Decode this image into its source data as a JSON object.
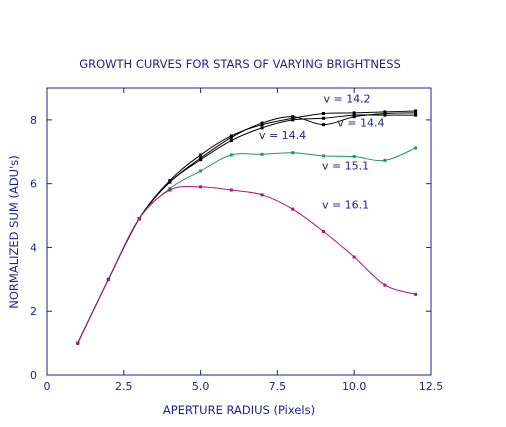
{
  "chart_data": {
    "type": "line",
    "title": "GROWTH CURVES FOR STARS OF VARYING BRIGHTNESS",
    "xlabel": "APERTURE RADIUS (Pixels)",
    "ylabel": "NORMALIZED SUM (ADU's)",
    "xlim": [
      0,
      12.5
    ],
    "ylim": [
      0,
      9
    ],
    "xticks": [
      0,
      2.5,
      5,
      7.5,
      10,
      12.5
    ],
    "xtick_labels": [
      "0",
      "2.5",
      "5.0",
      "7.5",
      "10.0",
      "12.5"
    ],
    "yticks": [
      0,
      2,
      4,
      6,
      8
    ],
    "ytick_labels": [
      "0",
      "2",
      "4",
      "6",
      "8"
    ],
    "grid": false,
    "series": [
      {
        "name": "v = 14.2",
        "color": "#000000",
        "x": [
          1,
          2,
          3,
          4,
          5,
          6,
          7,
          8,
          9,
          10,
          11,
          12
        ],
        "y": [
          1.0,
          3.0,
          4.9,
          6.1,
          6.9,
          7.5,
          7.85,
          8.05,
          8.2,
          8.22,
          8.25,
          8.28
        ]
      },
      {
        "name": "v = 14.4",
        "color": "#000000",
        "x": [
          1,
          2,
          3,
          4,
          5,
          6,
          7,
          8,
          9,
          10,
          11,
          12
        ],
        "y": [
          1.0,
          3.0,
          4.9,
          6.05,
          6.8,
          7.45,
          7.9,
          8.1,
          7.85,
          8.1,
          8.2,
          8.22
        ]
      },
      {
        "name": "v = 14.4",
        "color": "#000000",
        "x": [
          1,
          2,
          3,
          4,
          5,
          6,
          7,
          8,
          9,
          10,
          11,
          12
        ],
        "y": [
          1.0,
          3.0,
          4.9,
          6.05,
          6.75,
          7.35,
          7.75,
          8.0,
          8.05,
          8.15,
          8.15,
          8.15
        ]
      },
      {
        "name": "v = 15.1",
        "color": "#1a9a5a",
        "x": [
          1,
          2,
          3,
          4,
          5,
          6,
          7,
          8,
          9,
          10,
          11,
          12
        ],
        "y": [
          1.0,
          3.0,
          4.9,
          5.85,
          6.4,
          6.9,
          6.92,
          6.97,
          6.87,
          6.85,
          6.73,
          7.12
        ]
      },
      {
        "name": "v = 16.1",
        "color": "#b5146e",
        "x": [
          1,
          2,
          3,
          4,
          5,
          6,
          7,
          8,
          9,
          10,
          11,
          12
        ],
        "y": [
          1.0,
          3.0,
          4.9,
          5.8,
          5.9,
          5.8,
          5.65,
          5.2,
          4.5,
          3.7,
          2.82,
          2.53
        ]
      }
    ],
    "annotations": [
      "v = 14.2",
      "v = 14.4",
      "v = 14.4",
      "v = 15.1",
      "v = 16.1"
    ]
  }
}
